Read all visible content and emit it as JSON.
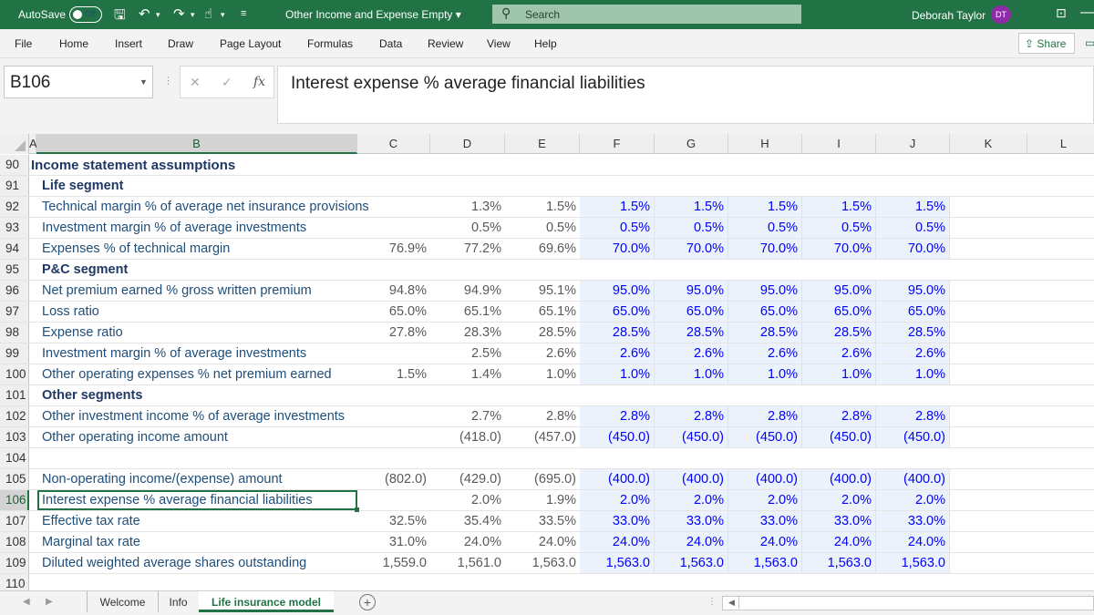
{
  "titlebar": {
    "autosave": "AutoSave",
    "toggle": "Off",
    "doc_title": "Other Income and Expense Empty ▾",
    "search": "Search",
    "user": "Deborah Taylor",
    "initials": "DT"
  },
  "menu": {
    "items": [
      "File",
      "Home",
      "Insert",
      "Draw",
      "Page Layout",
      "Formulas",
      "Data",
      "Review",
      "View",
      "Help"
    ],
    "share": "Share"
  },
  "formula_bar": {
    "name_box": "B106",
    "formula": "Interest expense % average financial liabilities"
  },
  "columns": [
    "A",
    "B",
    "C",
    "D",
    "E",
    "F",
    "G",
    "H",
    "I",
    "J",
    "K",
    "L"
  ],
  "rows": [
    {
      "n": "90",
      "label": "Income statement assumptions",
      "style": "bold",
      "values": [
        "",
        "",
        "",
        "",
        "",
        "",
        "",
        ""
      ]
    },
    {
      "n": "91",
      "label": "Life segment",
      "style": "sub",
      "values": [
        "",
        "",
        "",
        "",
        "",
        "",
        "",
        ""
      ]
    },
    {
      "n": "92",
      "label": "Technical margin % of average net insurance provisions",
      "style": "lbl",
      "values": [
        "",
        "1.3%",
        "1.5%",
        "1.5%",
        "1.5%",
        "1.5%",
        "1.5%",
        "1.5%"
      ]
    },
    {
      "n": "93",
      "label": "Investment margin % of average investments",
      "style": "lbl",
      "values": [
        "",
        "0.5%",
        "0.5%",
        "0.5%",
        "0.5%",
        "0.5%",
        "0.5%",
        "0.5%"
      ]
    },
    {
      "n": "94",
      "label": "Expenses % of technical margin",
      "style": "lbl",
      "values": [
        "76.9%",
        "77.2%",
        "69.6%",
        "70.0%",
        "70.0%",
        "70.0%",
        "70.0%",
        "70.0%"
      ]
    },
    {
      "n": "95",
      "label": "P&C segment",
      "style": "sub",
      "values": [
        "",
        "",
        "",
        "",
        "",
        "",
        "",
        ""
      ]
    },
    {
      "n": "96",
      "label": "Net premium earned % gross written premium",
      "style": "lbl",
      "values": [
        "94.8%",
        "94.9%",
        "95.1%",
        "95.0%",
        "95.0%",
        "95.0%",
        "95.0%",
        "95.0%"
      ]
    },
    {
      "n": "97",
      "label": "Loss ratio",
      "style": "lbl",
      "values": [
        "65.0%",
        "65.1%",
        "65.1%",
        "65.0%",
        "65.0%",
        "65.0%",
        "65.0%",
        "65.0%"
      ]
    },
    {
      "n": "98",
      "label": "Expense ratio",
      "style": "lbl",
      "values": [
        "27.8%",
        "28.3%",
        "28.5%",
        "28.5%",
        "28.5%",
        "28.5%",
        "28.5%",
        "28.5%"
      ]
    },
    {
      "n": "99",
      "label": "Investment margin % of average investments",
      "style": "lbl",
      "values": [
        "",
        "2.5%",
        "2.6%",
        "2.6%",
        "2.6%",
        "2.6%",
        "2.6%",
        "2.6%"
      ]
    },
    {
      "n": "100",
      "label": "Other operating expenses % net premium earned",
      "style": "lbl",
      "values": [
        "1.5%",
        "1.4%",
        "1.0%",
        "1.0%",
        "1.0%",
        "1.0%",
        "1.0%",
        "1.0%"
      ]
    },
    {
      "n": "101",
      "label": "Other segments",
      "style": "sub",
      "values": [
        "",
        "",
        "",
        "",
        "",
        "",
        "",
        ""
      ]
    },
    {
      "n": "102",
      "label": "Other investment income % of average investments",
      "style": "lbl",
      "values": [
        "",
        "2.7%",
        "2.8%",
        "2.8%",
        "2.8%",
        "2.8%",
        "2.8%",
        "2.8%"
      ]
    },
    {
      "n": "103",
      "label": "Other operating income amount",
      "style": "lbl",
      "values": [
        "",
        "(418.0)",
        "(457.0)",
        "(450.0)",
        "(450.0)",
        "(450.0)",
        "(450.0)",
        "(450.0)"
      ]
    },
    {
      "n": "104",
      "label": "",
      "style": "lbl",
      "values": [
        "",
        "",
        "",
        "",
        "",
        "",
        "",
        ""
      ]
    },
    {
      "n": "105",
      "label": "Non-operating income/(expense) amount",
      "style": "lbl",
      "values": [
        "(802.0)",
        "(429.0)",
        "(695.0)",
        "(400.0)",
        "(400.0)",
        "(400.0)",
        "(400.0)",
        "(400.0)"
      ]
    },
    {
      "n": "106",
      "label": "Interest expense % average financial liabilities",
      "style": "lbl",
      "values": [
        "",
        "2.0%",
        "1.9%",
        "2.0%",
        "2.0%",
        "2.0%",
        "2.0%",
        "2.0%"
      ]
    },
    {
      "n": "107",
      "label": "Effective tax rate",
      "style": "lbl",
      "values": [
        "32.5%",
        "35.4%",
        "33.5%",
        "33.0%",
        "33.0%",
        "33.0%",
        "33.0%",
        "33.0%"
      ]
    },
    {
      "n": "108",
      "label": "Marginal tax rate",
      "style": "lbl",
      "values": [
        "31.0%",
        "24.0%",
        "24.0%",
        "24.0%",
        "24.0%",
        "24.0%",
        "24.0%",
        "24.0%"
      ]
    },
    {
      "n": "109",
      "label": "Diluted weighted average shares outstanding",
      "style": "lbl",
      "values": [
        "1,559.0",
        "1,561.0",
        "1,563.0",
        "1,563.0",
        "1,563.0",
        "1,563.0",
        "1,563.0",
        "1,563.0"
      ]
    },
    {
      "n": "110",
      "label": "",
      "style": "lbl",
      "values": [
        "",
        "",
        "",
        "",
        "",
        "",
        "",
        ""
      ]
    }
  ],
  "selected_row": "106",
  "sheet_tabs": [
    "Welcome",
    "Info",
    "Life insurance model"
  ],
  "active_tab": "Life insurance model"
}
